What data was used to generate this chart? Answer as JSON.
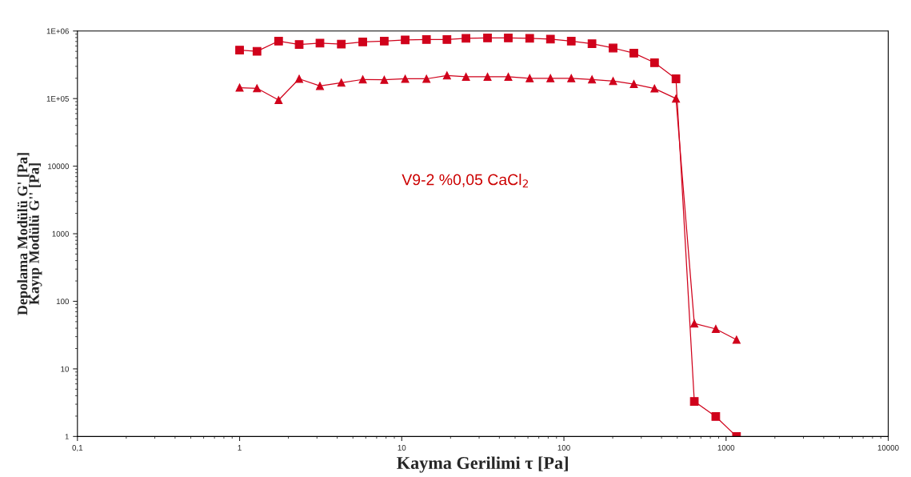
{
  "chart_data": {
    "type": "line",
    "xlabel": "Kayma Gerilimi τ [Pa]",
    "ylabel": "Depolama Modülü G' [Pa]\nKayıp Modülü G'' [Pa]",
    "annotations": [
      "V9-2 %0,05 CaCl$_{2}$"
    ],
    "x": [
      1.0,
      1.28,
      1.74,
      2.33,
      3.13,
      4.24,
      5.75,
      7.8,
      10.5,
      14.2,
      19.0,
      24.9,
      33.8,
      45.4,
      61.5,
      82.6,
      111,
      149,
      201,
      270,
      362,
      491,
      637,
      864,
      1160
    ],
    "series": [
      {
        "color": "#d0021b",
        "marker": "square",
        "values": [
          520000,
          500000,
          710000,
          630000,
          660000,
          640000,
          690000,
          710000,
          740000,
          750000,
          750000,
          780000,
          790000,
          790000,
          780000,
          760000,
          710000,
          650000,
          560000,
          470000,
          340000,
          196000,
          3.3,
          1.97,
          1.0
        ]
      },
      {
        "color": "#d0021b",
        "marker": "triangle",
        "values": [
          145000,
          142000,
          95000,
          196000,
          154000,
          172000,
          192000,
          190000,
          196000,
          196000,
          220000,
          210000,
          210000,
          210000,
          200000,
          200000,
          200000,
          192000,
          182000,
          164000,
          141000,
          100000,
          47,
          39,
          27
        ]
      }
    ],
    "log": "xy",
    "xlim": [
      0.1,
      10000
    ],
    "xticks": [
      {
        "value": 0.1,
        "label": "0,1"
      },
      1,
      10,
      100,
      1000,
      10000
    ],
    "ylim": [
      1,
      1000000
    ],
    "yticks": [
      1,
      10,
      100,
      1000,
      10000,
      {
        "value": 100000,
        "label": "1E+05"
      },
      {
        "value": 1000000,
        "label": "1E+06"
      }
    ],
    "grid": false,
    "legend": false,
    "line_style": "solid"
  }
}
